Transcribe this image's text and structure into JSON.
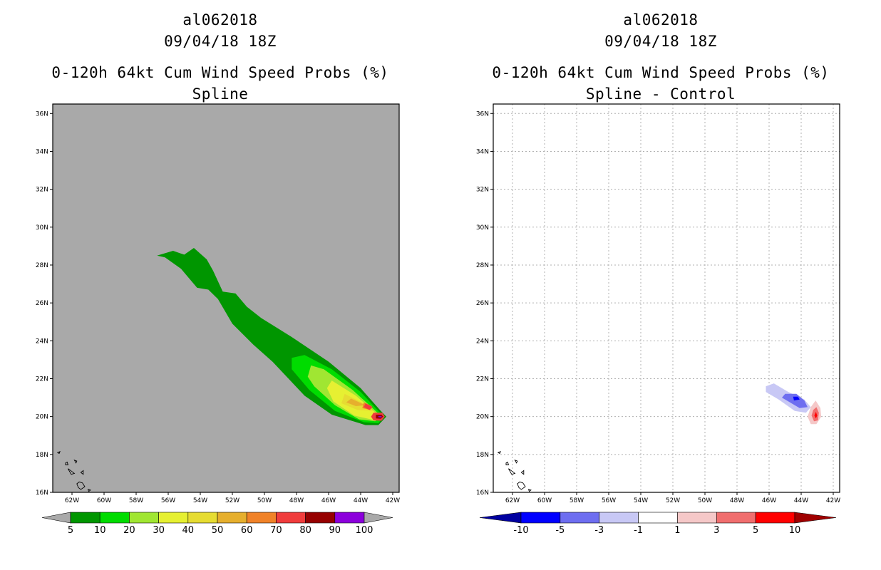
{
  "panels": [
    {
      "title_line1": "al062018",
      "title_line2": "09/04/18 18Z",
      "title_line3": "0-120h 64kt Cum Wind Speed Probs (%)",
      "title_line4": "Spline"
    },
    {
      "title_line1": "al062018",
      "title_line2": "09/04/18 18Z",
      "title_line3": "0-120h 64kt Cum Wind Speed Probs (%)",
      "title_line4": "Spline - Control"
    }
  ],
  "colors": {
    "ocean_left": "#a9a9a9",
    "ocean_right": "#ffffff",
    "grid": "#b0b0b0"
  },
  "chart_data": [
    {
      "type": "contour-map",
      "title": "0-120h 64kt Cum Wind Speed Probs (%) — Spline",
      "x_ticks": [
        "62W",
        "60W",
        "58W",
        "56W",
        "54W",
        "52W",
        "50W",
        "48W",
        "46W",
        "44W",
        "42W"
      ],
      "y_ticks": [
        "16N",
        "18N",
        "20N",
        "22N",
        "24N",
        "26N",
        "28N",
        "30N",
        "32N",
        "34N",
        "36N"
      ],
      "lon_range": [
        -63.2,
        -41.6
      ],
      "lat_range": [
        16,
        36.5
      ],
      "grid": false,
      "colorbar": {
        "levels": [
          "5",
          "10",
          "20",
          "30",
          "40",
          "50",
          "60",
          "70",
          "80",
          "90",
          "100"
        ],
        "colors": [
          "#009600",
          "#00dc00",
          "#a0e632",
          "#e6f032",
          "#e6dc32",
          "#e6af2d",
          "#f08228",
          "#f03c3c",
          "#960000",
          "#8c00dc"
        ]
      },
      "contours": [
        {
          "level": 5,
          "color": "#009600",
          "polygon": [
            [
              -56.7,
              28.5
            ],
            [
              -55.7,
              28.75
            ],
            [
              -55,
              28.55
            ],
            [
              -54.4,
              28.9
            ],
            [
              -53.6,
              28.3
            ],
            [
              -53.2,
              27.7
            ],
            [
              -52.6,
              26.6
            ],
            [
              -51.8,
              26.5
            ],
            [
              -51.1,
              25.8
            ],
            [
              -50.2,
              25.2
            ],
            [
              -48.3,
              24.2
            ],
            [
              -46,
              22.9
            ],
            [
              -44,
              21.5
            ],
            [
              -42.8,
              20.35
            ],
            [
              -42.4,
              20
            ],
            [
              -42.9,
              19.55
            ],
            [
              -43.7,
              19.55
            ],
            [
              -45.8,
              20.1
            ],
            [
              -47.5,
              21.1
            ],
            [
              -49.5,
              22.9
            ],
            [
              -50.7,
              23.8
            ],
            [
              -52,
              24.9
            ],
            [
              -52.9,
              26.2
            ],
            [
              -53.5,
              26.7
            ],
            [
              -54.2,
              26.8
            ],
            [
              -55.2,
              27.8
            ],
            [
              -56.2,
              28.4
            ]
          ]
        },
        {
          "level": 10,
          "color": "#00dc00",
          "polygon": [
            [
              -48.3,
              23.1
            ],
            [
              -47.5,
              23.25
            ],
            [
              -45.8,
              22.5
            ],
            [
              -44,
              21.3
            ],
            [
              -42.9,
              20.3
            ],
            [
              -42.55,
              20
            ],
            [
              -42.9,
              19.65
            ],
            [
              -43.8,
              19.7
            ],
            [
              -45.6,
              20.3
            ],
            [
              -47.2,
              21.4
            ],
            [
              -48.3,
              22.5
            ]
          ]
        },
        {
          "level": 20,
          "color": "#a0e632",
          "polygon": [
            [
              -47.1,
              22.7
            ],
            [
              -46.3,
              22.5
            ],
            [
              -44.5,
              21.4
            ],
            [
              -43.2,
              20.4
            ],
            [
              -42.7,
              20
            ],
            [
              -43.1,
              19.75
            ],
            [
              -44.1,
              19.85
            ],
            [
              -45.6,
              20.6
            ],
            [
              -46.9,
              21.6
            ],
            [
              -47.3,
              22.1
            ]
          ]
        },
        {
          "level": 30,
          "color": "#e6f032",
          "polygon": [
            [
              -45.8,
              21.9
            ],
            [
              -44.3,
              21.1
            ],
            [
              -43.2,
              20.3
            ],
            [
              -42.8,
              20
            ],
            [
              -43.2,
              19.82
            ],
            [
              -44.4,
              20.05
            ],
            [
              -45.7,
              20.8
            ],
            [
              -46.1,
              21.5
            ]
          ]
        },
        {
          "level": 40,
          "color": "#e6dc32",
          "polygon": [
            [
              -45,
              21.2
            ],
            [
              -43.6,
              20.6
            ],
            [
              -43.2,
              20.3
            ],
            [
              -44.2,
              20.35
            ],
            [
              -45.2,
              20.7
            ]
          ]
        },
        {
          "level": 50,
          "color": "#e6af2d",
          "polygon": [
            [
              -44.6,
              20.95
            ],
            [
              -43.7,
              20.6
            ],
            [
              -44.3,
              20.55
            ],
            [
              -44.9,
              20.75
            ]
          ]
        },
        {
          "level": 60,
          "color": "#f08228",
          "polygon": [
            [
              -43.8,
              20.75
            ],
            [
              -43.3,
              20.55
            ],
            [
              -43.4,
              20.35
            ],
            [
              -43.9,
              20.45
            ]
          ]
        },
        {
          "level": 70,
          "color": "#f03c3c",
          "polygon": [
            [
              -43.7,
              20.7
            ],
            [
              -43.25,
              20.5
            ],
            [
              -43.45,
              20.35
            ],
            [
              -43.8,
              20.5
            ]
          ]
        },
        {
          "level": 70,
          "color": "#f03c3c",
          "polygon": [
            [
              -43.2,
              20.2
            ],
            [
              -42.65,
              20.2
            ],
            [
              -42.5,
              20
            ],
            [
              -42.7,
              19.78
            ],
            [
              -43.2,
              19.8
            ],
            [
              -43.35,
              20
            ]
          ]
        },
        {
          "level": 80,
          "color": "#960000",
          "polygon": [
            [
              -43.05,
              20.1
            ],
            [
              -42.7,
              20.1
            ],
            [
              -42.6,
              20
            ],
            [
              -42.75,
              19.88
            ],
            [
              -43.05,
              19.9
            ]
          ]
        },
        {
          "level": 90,
          "color": "#8c00dc",
          "polygon": [
            [
              -42.9,
              20.03
            ],
            [
              -42.72,
              20.03
            ],
            [
              -42.68,
              20
            ],
            [
              -42.72,
              19.96
            ],
            [
              -42.9,
              19.97
            ]
          ]
        }
      ]
    },
    {
      "type": "contour-map",
      "title": "0-120h 64kt Cum Wind Speed Probs (%) — Spline - Control",
      "x_ticks": [
        "62W",
        "60W",
        "58W",
        "56W",
        "54W",
        "52W",
        "50W",
        "48W",
        "46W",
        "44W",
        "42W"
      ],
      "y_ticks": [
        "16N",
        "18N",
        "20N",
        "22N",
        "24N",
        "26N",
        "28N",
        "30N",
        "32N",
        "34N",
        "36N"
      ],
      "lon_range": [
        -63.2,
        -41.6
      ],
      "lat_range": [
        16,
        36.5
      ],
      "grid": true,
      "colorbar": {
        "levels": [
          "-10",
          "-5",
          "-3",
          "-1",
          "1",
          "3",
          "5",
          "10"
        ],
        "colors": [
          "#0000a0",
          "#0000ff",
          "#6e6ef0",
          "#c8c8f5",
          "#ffffff",
          "#f5c8c8",
          "#f06e6e",
          "#ff0000",
          "#a00000"
        ]
      },
      "contours": [
        {
          "level": -1,
          "color": "#c8c8f5",
          "polygon": [
            [
              -46.2,
              21.6
            ],
            [
              -45.7,
              21.75
            ],
            [
              -44.8,
              21.3
            ],
            [
              -43.8,
              20.9
            ],
            [
              -43.4,
              20.5
            ],
            [
              -43.7,
              20.2
            ],
            [
              -44.4,
              20.3
            ],
            [
              -45.4,
              20.9
            ],
            [
              -46.2,
              21.3
            ]
          ]
        },
        {
          "level": -3,
          "color": "#6e6ef0",
          "polygon": [
            [
              -45,
              21.2
            ],
            [
              -44.3,
              21.2
            ],
            [
              -43.8,
              20.85
            ],
            [
              -43.6,
              20.5
            ],
            [
              -44.1,
              20.45
            ],
            [
              -44.8,
              20.8
            ],
            [
              -45.2,
              21
            ]
          ]
        },
        {
          "level": -5,
          "color": "#0000ff",
          "polygon": [
            [
              -44.5,
              21.05
            ],
            [
              -44.2,
              21.05
            ],
            [
              -44.1,
              20.9
            ],
            [
              -44.45,
              20.85
            ]
          ]
        },
        {
          "level": 1,
          "color": "#f5c8c8",
          "polygon": [
            [
              -43.1,
              20.85
            ],
            [
              -42.8,
              20.45
            ],
            [
              -42.75,
              20
            ],
            [
              -43.05,
              19.6
            ],
            [
              -43.4,
              19.6
            ],
            [
              -43.6,
              20
            ],
            [
              -43.4,
              20.5
            ]
          ]
        },
        {
          "level": 3,
          "color": "#f06e6e",
          "polygon": [
            [
              -43.05,
              20.5
            ],
            [
              -42.9,
              20.2
            ],
            [
              -42.95,
              19.8
            ],
            [
              -43.2,
              19.75
            ],
            [
              -43.35,
              20.05
            ],
            [
              -43.25,
              20.35
            ]
          ]
        },
        {
          "level": 5,
          "color": "#ff0000",
          "polygon": [
            [
              -43.08,
              20.25
            ],
            [
              -43.0,
              20.05
            ],
            [
              -43.08,
              19.9
            ],
            [
              -43.18,
              20.05
            ]
          ]
        }
      ]
    }
  ]
}
